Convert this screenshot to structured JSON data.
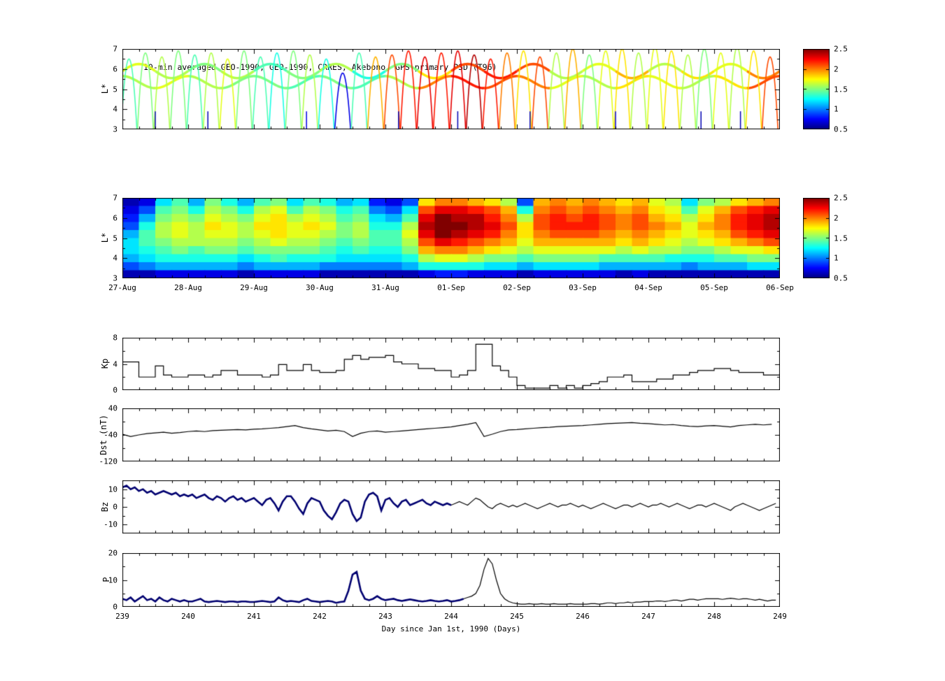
{
  "figure": {
    "background": "#ffffff"
  },
  "chart_data": [
    {
      "id": "psd-scatter",
      "type": "scatter",
      "title": "10-min averaged GEO-1990, GEO-1990, CRRES, Akebono, GPS primary PSD (T96)",
      "ylabel": "L*",
      "xlim": [
        239,
        249
      ],
      "ylim": [
        3,
        7
      ],
      "yticks": [
        3,
        4,
        5,
        6,
        7
      ],
      "yminor": [
        3.5,
        4.5,
        5.5,
        6.5
      ],
      "colorbar": {
        "range": [
          0.5,
          2.5
        ],
        "label_values": [
          0.5,
          1,
          1.5,
          2,
          2.5
        ],
        "colormap": "jet"
      },
      "bands": [
        {
          "base_l": 5.9,
          "amp": 0.35,
          "phase": 0,
          "values": [
            1.7,
            1.6,
            1.5,
            1.6,
            1.4,
            1.5,
            1.6,
            1.3,
            1.5,
            1.8,
            2.1,
            2.2,
            2.1,
            1.6,
            1.7,
            1.9,
            1.6,
            1.8,
            1.7,
            2.0
          ]
        },
        {
          "base_l": 5.35,
          "amp": 0.3,
          "phase": 1.57,
          "values": [
            1.6,
            1.7,
            1.6,
            1.5,
            1.5,
            1.4,
            1.5,
            1.4,
            1.6,
            2.0,
            2.2,
            2.1,
            2.0,
            1.7,
            1.6,
            1.8,
            1.7,
            1.6,
            1.8,
            2.1
          ]
        }
      ],
      "arcs": [
        [
          239.1,
          6.5,
          1.4
        ],
        [
          239.35,
          6.8,
          1.5
        ],
        [
          239.6,
          6.6,
          1.6
        ],
        [
          239.85,
          6.9,
          1.5
        ],
        [
          240.1,
          6.7,
          1.4
        ],
        [
          240.35,
          6.8,
          1.6
        ],
        [
          240.6,
          6.5,
          1.7
        ],
        [
          240.85,
          6.9,
          1.5
        ],
        [
          241.1,
          6.6,
          1.4
        ],
        [
          241.35,
          6.8,
          1.3
        ],
        [
          241.6,
          6.9,
          1.5
        ],
        [
          241.85,
          6.7,
          1.6
        ],
        [
          242.1,
          6.5,
          1.3
        ],
        [
          242.35,
          5.8,
          0.7
        ],
        [
          242.6,
          6.8,
          1.4
        ],
        [
          242.85,
          6.6,
          1.9
        ],
        [
          243.1,
          6.7,
          2.1
        ],
        [
          243.35,
          6.9,
          2.2
        ],
        [
          243.6,
          6.6,
          2.3
        ],
        [
          243.85,
          6.8,
          2.2
        ],
        [
          244.1,
          6.9,
          2.3
        ],
        [
          244.35,
          6.7,
          2.4
        ],
        [
          244.6,
          6.5,
          2.2
        ],
        [
          244.85,
          6.8,
          2.0
        ],
        [
          245.1,
          6.9,
          1.8
        ],
        [
          245.35,
          6.6,
          2.1
        ],
        [
          245.6,
          6.8,
          1.6
        ],
        [
          245.85,
          7.0,
          1.9
        ],
        [
          246.1,
          6.7,
          1.5
        ],
        [
          246.35,
          6.9,
          1.7
        ],
        [
          246.6,
          7.0,
          1.8
        ],
        [
          246.85,
          6.8,
          1.6
        ],
        [
          247.1,
          7.1,
          1.7
        ],
        [
          247.35,
          6.9,
          1.8
        ],
        [
          247.6,
          6.7,
          1.6
        ],
        [
          247.85,
          7.0,
          1.5
        ],
        [
          248.1,
          6.8,
          1.7
        ],
        [
          248.35,
          7.1,
          1.6
        ],
        [
          248.6,
          6.9,
          1.8
        ],
        [
          248.85,
          6.6,
          2.1
        ]
      ],
      "drops": [
        [
          239.5,
          0.6
        ],
        [
          240.3,
          0.6
        ],
        [
          241.8,
          0.7
        ],
        [
          243.2,
          0.6
        ],
        [
          244.1,
          0.6
        ],
        [
          245.2,
          0.6
        ],
        [
          246.5,
          0.7
        ],
        [
          247.8,
          0.6
        ],
        [
          248.4,
          0.6
        ]
      ]
    },
    {
      "id": "psd-heatmap",
      "type": "heatmap",
      "ylabel": "L*",
      "xlim": [
        239,
        249
      ],
      "ylim": [
        3,
        7
      ],
      "yticks": [
        3,
        4,
        5,
        6,
        7
      ],
      "yminor": [
        3.5,
        4.5,
        5.5,
        6.5
      ],
      "xtick_labels": [
        "27-Aug",
        "28-Aug",
        "29-Aug",
        "30-Aug",
        "31-Aug",
        "01-Sep",
        "02-Sep",
        "03-Sep",
        "04-Sep",
        "05-Sep",
        "06-Sep"
      ],
      "colorbar": {
        "range": [
          0.5,
          2.5
        ],
        "label_values": [
          0.5,
          1,
          1.5,
          2,
          2.5
        ],
        "colormap": "jet"
      },
      "grid": [
        [
          0.6,
          0.7,
          1.2,
          1.4,
          1.1,
          1.5,
          1.3,
          1.1,
          1.4,
          1.5,
          1.2,
          1.4,
          1.3,
          1.1,
          1.2,
          0.8,
          0.7,
          0.9,
          1.8,
          2.0,
          2.0,
          1.9,
          1.8,
          1.6,
          0.9,
          1.9,
          2.0,
          1.9,
          2.0,
          1.9,
          1.8,
          1.9,
          1.7,
          1.6,
          1.2,
          1.5,
          1.6,
          1.8,
          1.9,
          2.0
        ],
        [
          0.7,
          0.9,
          1.4,
          1.5,
          1.3,
          1.6,
          1.5,
          1.3,
          1.6,
          1.7,
          1.4,
          1.6,
          1.5,
          1.3,
          1.4,
          1.0,
          0.9,
          1.2,
          2.1,
          2.3,
          2.3,
          2.2,
          2.1,
          1.9,
          1.3,
          2.0,
          2.1,
          2.0,
          2.1,
          2.0,
          1.9,
          2.0,
          1.8,
          1.7,
          1.4,
          1.7,
          1.9,
          2.1,
          2.2,
          2.3
        ],
        [
          0.8,
          1.1,
          1.5,
          1.6,
          1.5,
          1.7,
          1.6,
          1.5,
          1.7,
          1.8,
          1.6,
          1.7,
          1.6,
          1.4,
          1.5,
          1.2,
          1.1,
          1.4,
          2.3,
          2.5,
          2.4,
          2.4,
          2.2,
          2.0,
          1.6,
          2.1,
          2.2,
          2.1,
          2.2,
          2.1,
          2.0,
          2.1,
          1.9,
          1.8,
          1.6,
          1.8,
          2.0,
          2.2,
          2.3,
          2.4
        ],
        [
          0.9,
          1.3,
          1.6,
          1.7,
          1.6,
          1.8,
          1.7,
          1.6,
          1.8,
          1.8,
          1.7,
          1.8,
          1.7,
          1.5,
          1.6,
          1.3,
          1.3,
          1.6,
          2.4,
          2.5,
          2.5,
          2.4,
          2.3,
          2.1,
          1.8,
          2.1,
          2.2,
          2.2,
          2.2,
          2.1,
          2.0,
          2.1,
          2.0,
          1.9,
          1.7,
          1.9,
          2.0,
          2.2,
          2.3,
          2.4
        ],
        [
          1.1,
          1.4,
          1.6,
          1.7,
          1.6,
          1.7,
          1.7,
          1.6,
          1.7,
          1.8,
          1.7,
          1.7,
          1.6,
          1.5,
          1.6,
          1.4,
          1.4,
          1.7,
          2.3,
          2.5,
          2.4,
          2.3,
          2.2,
          2.0,
          1.8,
          2.0,
          2.1,
          2.1,
          2.1,
          2.0,
          1.9,
          2.0,
          1.9,
          1.8,
          1.7,
          1.8,
          1.9,
          2.1,
          2.2,
          2.3
        ],
        [
          1.2,
          1.4,
          1.5,
          1.6,
          1.6,
          1.6,
          1.6,
          1.5,
          1.6,
          1.7,
          1.6,
          1.6,
          1.5,
          1.4,
          1.5,
          1.4,
          1.4,
          1.6,
          2.1,
          2.3,
          2.2,
          2.1,
          2.0,
          1.9,
          1.7,
          1.9,
          1.9,
          1.9,
          1.9,
          1.9,
          1.8,
          1.9,
          1.8,
          1.7,
          1.6,
          1.7,
          1.8,
          1.9,
          2.0,
          2.1
        ],
        [
          1.2,
          1.3,
          1.4,
          1.5,
          1.4,
          1.5,
          1.5,
          1.4,
          1.5,
          1.5,
          1.5,
          1.5,
          1.4,
          1.3,
          1.4,
          1.3,
          1.3,
          1.5,
          1.9,
          2.0,
          2.0,
          1.9,
          1.8,
          1.7,
          1.6,
          1.7,
          1.7,
          1.7,
          1.7,
          1.7,
          1.6,
          1.7,
          1.6,
          1.6,
          1.5,
          1.5,
          1.6,
          1.7,
          1.7,
          1.8
        ],
        [
          1.1,
          1.2,
          1.3,
          1.3,
          1.3,
          1.3,
          1.3,
          1.2,
          1.3,
          1.4,
          1.3,
          1.3,
          1.3,
          1.2,
          1.2,
          1.2,
          1.2,
          1.3,
          1.6,
          1.7,
          1.7,
          1.6,
          1.5,
          1.5,
          1.4,
          1.5,
          1.5,
          1.5,
          1.5,
          1.4,
          1.4,
          1.4,
          1.4,
          1.3,
          1.3,
          1.3,
          1.4,
          1.4,
          1.5,
          1.5
        ],
        [
          0.9,
          1.0,
          1.1,
          1.1,
          1.1,
          1.1,
          1.1,
          1.0,
          1.1,
          1.1,
          1.1,
          1.1,
          1.0,
          1.0,
          1.0,
          1.0,
          1.0,
          1.1,
          1.3,
          1.3,
          1.3,
          1.3,
          1.2,
          1.2,
          1.1,
          1.2,
          1.2,
          1.2,
          1.2,
          1.1,
          1.1,
          1.1,
          1.1,
          1.1,
          1.0,
          1.1,
          1.1,
          1.1,
          1.2,
          1.2
        ],
        [
          0.6,
          0.6,
          0.7,
          0.7,
          0.7,
          0.7,
          0.7,
          0.6,
          0.7,
          0.7,
          0.7,
          0.7,
          0.6,
          0.6,
          0.6,
          0.6,
          0.6,
          0.6,
          0.7,
          0.8,
          0.8,
          0.7,
          0.7,
          0.7,
          0.6,
          0.7,
          0.7,
          0.7,
          0.7,
          0.7,
          0.6,
          0.7,
          0.6,
          0.6,
          0.6,
          0.6,
          0.6,
          0.6,
          0.6,
          0.6
        ]
      ]
    },
    {
      "id": "kp",
      "type": "line",
      "step": true,
      "ylabel": "Kp",
      "xlim": [
        239,
        249
      ],
      "ylim": [
        0,
        8
      ],
      "yticks": [
        0,
        4,
        8
      ],
      "yminor": [
        2,
        6
      ],
      "t0": 239,
      "dt": 0.125,
      "values": [
        4.3,
        4.3,
        2.0,
        2.0,
        3.7,
        2.3,
        2.0,
        2.0,
        2.3,
        2.3,
        2.0,
        2.3,
        3.0,
        3.0,
        2.3,
        2.3,
        2.3,
        2.0,
        2.3,
        3.9,
        3.0,
        3.0,
        3.9,
        3.0,
        2.7,
        2.7,
        3.0,
        4.7,
        5.3,
        4.7,
        5.0,
        5.0,
        5.3,
        4.3,
        4.0,
        4.0,
        3.3,
        3.3,
        3.0,
        3.0,
        2.0,
        2.3,
        3.0,
        7.0,
        7.0,
        3.7,
        3.0,
        2.0,
        0.7,
        0.3,
        0.3,
        0.3,
        0.7,
        0.3,
        0.7,
        0.3,
        0.7,
        1.0,
        1.3,
        2.0,
        2.0,
        2.3,
        1.3,
        1.3,
        1.3,
        1.7,
        1.7,
        2.3,
        2.3,
        2.7,
        3.0,
        3.0,
        3.3,
        3.3,
        3.0,
        2.7,
        2.7,
        2.7,
        2.3,
        2.3
      ]
    },
    {
      "id": "dst",
      "type": "line",
      "ylabel": "Dst (nT)",
      "xlim": [
        239,
        249
      ],
      "ylim": [
        -120,
        40
      ],
      "yticks": [
        -120,
        -40,
        40
      ],
      "yminor": [
        -80,
        0
      ],
      "t0": 239,
      "dt": 0.125,
      "values": [
        -38,
        -45,
        -40,
        -36,
        -34,
        -32,
        -35,
        -33,
        -30,
        -28,
        -30,
        -27,
        -26,
        -25,
        -24,
        -25,
        -23,
        -22,
        -20,
        -18,
        -15,
        -12,
        -18,
        -22,
        -25,
        -28,
        -26,
        -30,
        -45,
        -35,
        -30,
        -28,
        -32,
        -30,
        -28,
        -26,
        -24,
        -22,
        -20,
        -18,
        -16,
        -12,
        -8,
        -3,
        -45,
        -38,
        -30,
        -25,
        -24,
        -22,
        -20,
        -18,
        -17,
        -15,
        -14,
        -13,
        -12,
        -10,
        -8,
        -6,
        -5,
        -4,
        -3,
        -5,
        -6,
        -8,
        -10,
        -9,
        -12,
        -14,
        -15,
        -13,
        -12,
        -14,
        -16,
        -12,
        -10,
        -8,
        -10,
        -8
      ]
    },
    {
      "id": "bz",
      "type": "line",
      "ylabel": "Bz",
      "xlim": [
        239,
        249
      ],
      "ylim": [
        -15,
        15
      ],
      "yticks": [
        -10,
        0,
        10
      ],
      "yminor": [
        -5,
        5
      ],
      "t0": 239,
      "dt": 0.0625,
      "thick_until": 244.0,
      "thick_color": "#000070",
      "values": [
        11,
        12,
        10,
        11,
        9,
        10,
        8,
        9,
        7,
        8,
        9,
        8,
        7,
        8,
        6,
        7,
        6,
        7,
        5,
        6,
        7,
        5,
        4,
        6,
        5,
        3,
        5,
        6,
        4,
        5,
        3,
        4,
        5,
        3,
        1,
        4,
        5,
        2,
        -2,
        3,
        6,
        6,
        3,
        -1,
        -4,
        2,
        5,
        4,
        3,
        -2,
        -5,
        -7,
        -3,
        2,
        4,
        3,
        -4,
        -8,
        -6,
        3,
        7,
        8,
        6,
        -2,
        4,
        5,
        2,
        0,
        3,
        4,
        1,
        2,
        3,
        4,
        2,
        1,
        3,
        2,
        1,
        2,
        1,
        2,
        3,
        2,
        1,
        3,
        5,
        4,
        2,
        0,
        -1,
        1,
        2,
        1,
        0,
        1,
        0,
        1,
        2,
        1,
        0,
        -1,
        0,
        1,
        2,
        1,
        0,
        1,
        1,
        2,
        1,
        0,
        1,
        0,
        -1,
        0,
        1,
        2,
        1,
        0,
        -1,
        0,
        1,
        1,
        0,
        1,
        2,
        1,
        0,
        1,
        1,
        2,
        1,
        0,
        1,
        2,
        1,
        0,
        -1,
        0,
        1,
        1,
        0,
        1,
        2,
        1,
        0,
        -1,
        -2,
        0,
        1,
        2,
        1,
        0,
        -1,
        -2,
        -1,
        0,
        1,
        2
      ]
    },
    {
      "id": "p",
      "type": "line",
      "ylabel": "P",
      "xlabel": "Day since Jan 1st, 1990 (Days)",
      "xlim": [
        239,
        249
      ],
      "ylim": [
        0,
        20
      ],
      "yticks": [
        0,
        10,
        20
      ],
      "yminor": [
        5,
        15
      ],
      "xtick_labels": [
        "239",
        "240",
        "241",
        "242",
        "243",
        "244",
        "245",
        "246",
        "247",
        "248",
        "249"
      ],
      "t0": 239,
      "dt": 0.0625,
      "thick_until": 244.2,
      "thick_color": "#000070",
      "values": [
        3,
        2.5,
        3.5,
        2,
        3,
        4,
        2.5,
        3,
        2,
        3.5,
        2.5,
        2,
        3,
        2.5,
        2,
        2.5,
        2,
        2,
        2.5,
        3,
        2,
        1.8,
        2,
        2.2,
        2,
        1.8,
        2,
        2,
        1.8,
        2,
        2,
        1.8,
        1.8,
        2,
        2.2,
        2,
        1.8,
        2,
        3.5,
        2.5,
        2,
        2.2,
        2,
        1.8,
        2.5,
        3,
        2.2,
        2,
        1.8,
        2,
        2.2,
        2,
        1.5,
        1.8,
        2,
        6,
        12,
        13,
        6,
        3,
        2.5,
        3,
        4,
        3,
        2.5,
        2.8,
        3,
        2.5,
        2.2,
        2.5,
        2.8,
        2.5,
        2.2,
        2,
        2.2,
        2.5,
        2.2,
        2,
        2.2,
        2.5,
        2,
        2.2,
        2.5,
        3,
        3.5,
        4,
        5,
        8,
        14,
        18,
        16,
        10,
        5,
        3,
        2,
        1.5,
        1.2,
        1,
        1,
        1.2,
        1,
        1,
        1.2,
        1,
        1,
        1.2,
        1,
        1,
        1,
        1.2,
        1,
        1,
        1,
        1,
        1.2,
        1.2,
        1,
        1.2,
        1.5,
        1.5,
        1.2,
        1.5,
        1.5,
        1.8,
        1.5,
        1.8,
        1.8,
        2,
        2,
        2,
        2.2,
        2.2,
        2,
        2.2,
        2.5,
        2.5,
        2.2,
        2.5,
        2.8,
        2.8,
        2.5,
        2.8,
        3,
        3,
        3,
        3,
        2.8,
        3,
        3.2,
        3,
        2.8,
        3,
        3,
        2.8,
        2.5,
        2.8,
        2.5,
        2.2,
        2.5,
        2.5
      ]
    }
  ]
}
